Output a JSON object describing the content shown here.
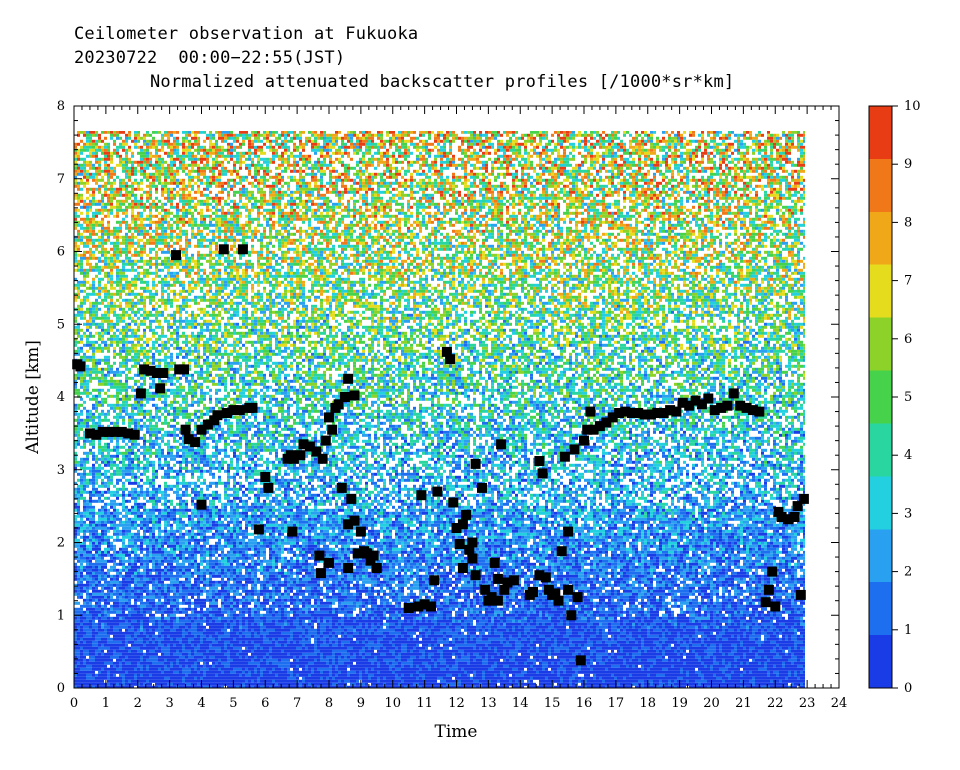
{
  "header": {
    "line1": "Ceilometer observation at Fukuoka",
    "line2": "20230722  00:00−22:55(JST)",
    "title": "Normalized attenuated backscatter profiles [/1000*sr*km]"
  },
  "chart_data": {
    "type": "heatmap",
    "title": "Normalized attenuated backscatter profiles [/1000*sr*km]",
    "xlabel": "Time",
    "ylabel": "Altitude [km]",
    "xlim": [
      0,
      24
    ],
    "ylim": [
      0,
      8
    ],
    "x_ticks": [
      "0",
      "1",
      "2",
      "3",
      "4",
      "5",
      "6",
      "7",
      "8",
      "9",
      "10",
      "11",
      "12",
      "13",
      "14",
      "15",
      "16",
      "17",
      "18",
      "19",
      "20",
      "21",
      "22",
      "23",
      "24"
    ],
    "y_ticks": [
      "0",
      "1",
      "2",
      "3",
      "4",
      "5",
      "6",
      "7",
      "8"
    ],
    "data_extent": {
      "time_end": 22.9,
      "altitude_top": 7.7
    },
    "colorbar": {
      "min": 0,
      "max": 10,
      "ticks": [
        "0",
        "1",
        "2",
        "3",
        "4",
        "5",
        "6",
        "7",
        "8",
        "9",
        "10"
      ],
      "colors": [
        "#1a3ce6",
        "#1e6ef0",
        "#2aa0f0",
        "#22d0e0",
        "#2ad6a0",
        "#46d24a",
        "#8cd228",
        "#e6dc1e",
        "#f0a818",
        "#f07818",
        "#e83c14"
      ]
    },
    "background_profile": {
      "altitude_km": [
        0,
        0.5,
        1.0,
        1.5,
        2.0,
        2.5,
        3.0,
        3.5,
        4.0,
        5.0,
        6.0,
        7.0,
        7.7
      ],
      "typical_value": [
        0.5,
        0.7,
        1.0,
        1.4,
        1.8,
        2.2,
        2.6,
        3.0,
        3.6,
        4.5,
        5.5,
        6.2,
        6.5
      ]
    },
    "cloud_base_series": {
      "name": "",
      "color": "#000000",
      "points": [
        [
          0.1,
          4.45
        ],
        [
          0.2,
          4.42
        ],
        [
          0.5,
          3.5
        ],
        [
          0.7,
          3.48
        ],
        [
          0.9,
          3.52
        ],
        [
          1.1,
          3.52
        ],
        [
          1.3,
          3.52
        ],
        [
          1.5,
          3.52
        ],
        [
          1.7,
          3.5
        ],
        [
          1.9,
          3.48
        ],
        [
          2.1,
          4.05
        ],
        [
          2.2,
          4.38
        ],
        [
          2.4,
          4.36
        ],
        [
          2.6,
          4.33
        ],
        [
          2.8,
          4.33
        ],
        [
          2.7,
          4.12
        ],
        [
          3.2,
          5.95
        ],
        [
          3.3,
          4.38
        ],
        [
          3.45,
          4.38
        ],
        [
          3.5,
          3.55
        ],
        [
          3.6,
          3.42
        ],
        [
          3.8,
          3.38
        ],
        [
          4.0,
          3.55
        ],
        [
          4.0,
          2.52
        ],
        [
          4.2,
          3.62
        ],
        [
          4.4,
          3.68
        ],
        [
          4.5,
          3.75
        ],
        [
          4.7,
          6.03
        ],
        [
          4.8,
          3.78
        ],
        [
          5.0,
          3.82
        ],
        [
          5.2,
          3.82
        ],
        [
          5.3,
          6.03
        ],
        [
          5.5,
          3.85
        ],
        [
          5.6,
          3.85
        ],
        [
          5.8,
          2.18
        ],
        [
          6.0,
          2.9
        ],
        [
          6.1,
          2.75
        ],
        [
          6.7,
          3.15
        ],
        [
          6.8,
          3.2
        ],
        [
          6.9,
          3.15
        ],
        [
          6.85,
          2.15
        ],
        [
          7.1,
          3.2
        ],
        [
          7.2,
          3.35
        ],
        [
          7.4,
          3.32
        ],
        [
          7.6,
          3.25
        ],
        [
          7.7,
          1.82
        ],
        [
          7.8,
          3.15
        ],
        [
          7.75,
          1.58
        ],
        [
          7.9,
          3.4
        ],
        [
          8.0,
          3.72
        ],
        [
          8.1,
          3.55
        ],
        [
          8.0,
          1.72
        ],
        [
          8.2,
          3.85
        ],
        [
          8.3,
          3.9
        ],
        [
          8.4,
          2.75
        ],
        [
          8.5,
          4.0
        ],
        [
          8.6,
          4.25
        ],
        [
          8.6,
          2.25
        ],
        [
          8.7,
          2.6
        ],
        [
          8.6,
          1.65
        ],
        [
          8.8,
          4.02
        ],
        [
          8.8,
          2.3
        ],
        [
          8.9,
          1.85
        ],
        [
          9.0,
          2.15
        ],
        [
          9.1,
          1.88
        ],
        [
          9.2,
          1.85
        ],
        [
          9.3,
          1.75
        ],
        [
          9.5,
          1.65
        ],
        [
          9.4,
          1.82
        ],
        [
          10.5,
          1.1
        ],
        [
          10.9,
          2.65
        ],
        [
          10.8,
          1.12
        ],
        [
          11.0,
          1.15
        ],
        [
          11.2,
          1.12
        ],
        [
          11.3,
          1.48
        ],
        [
          11.4,
          2.7
        ],
        [
          11.7,
          4.62
        ],
        [
          11.8,
          4.52
        ],
        [
          11.9,
          2.55
        ],
        [
          12.0,
          2.2
        ],
        [
          12.1,
          1.98
        ],
        [
          12.2,
          2.25
        ],
        [
          12.3,
          2.38
        ],
        [
          12.2,
          1.65
        ],
        [
          12.4,
          1.9
        ],
        [
          12.5,
          1.78
        ],
        [
          12.6,
          3.08
        ],
        [
          12.5,
          2.0
        ],
        [
          12.6,
          1.55
        ],
        [
          12.8,
          2.75
        ],
        [
          12.9,
          1.35
        ],
        [
          13.0,
          1.2
        ],
        [
          13.1,
          1.25
        ],
        [
          13.2,
          1.72
        ],
        [
          13.3,
          1.5
        ],
        [
          13.4,
          3.35
        ],
        [
          13.3,
          1.2
        ],
        [
          13.5,
          1.35
        ],
        [
          13.6,
          1.45
        ],
        [
          13.8,
          1.48
        ],
        [
          14.3,
          1.28
        ],
        [
          14.4,
          1.32
        ],
        [
          14.6,
          3.12
        ],
        [
          14.7,
          2.95
        ],
        [
          14.6,
          1.55
        ],
        [
          14.8,
          1.52
        ],
        [
          14.9,
          1.35
        ],
        [
          15.0,
          1.28
        ],
        [
          15.1,
          1.3
        ],
        [
          15.2,
          1.2
        ],
        [
          15.3,
          1.88
        ],
        [
          15.4,
          3.18
        ],
        [
          15.5,
          2.15
        ],
        [
          15.5,
          1.35
        ],
        [
          15.6,
          1.0
        ],
        [
          15.7,
          3.28
        ],
        [
          15.8,
          1.25
        ],
        [
          15.9,
          0.38
        ],
        [
          16.0,
          3.4
        ],
        [
          16.1,
          3.55
        ],
        [
          16.2,
          3.8
        ],
        [
          16.3,
          3.55
        ],
        [
          16.5,
          3.6
        ],
        [
          16.7,
          3.65
        ],
        [
          16.9,
          3.72
        ],
        [
          17.1,
          3.78
        ],
        [
          17.3,
          3.8
        ],
        [
          17.5,
          3.78
        ],
        [
          17.7,
          3.78
        ],
        [
          17.9,
          3.76
        ],
        [
          18.1,
          3.76
        ],
        [
          18.3,
          3.78
        ],
        [
          18.5,
          3.78
        ],
        [
          18.7,
          3.82
        ],
        [
          18.9,
          3.8
        ],
        [
          19.1,
          3.92
        ],
        [
          19.3,
          3.88
        ],
        [
          19.5,
          3.95
        ],
        [
          19.7,
          3.9
        ],
        [
          19.9,
          3.98
        ],
        [
          20.1,
          3.82
        ],
        [
          20.3,
          3.85
        ],
        [
          20.5,
          3.88
        ],
        [
          20.7,
          4.05
        ],
        [
          20.9,
          3.88
        ],
        [
          21.1,
          3.85
        ],
        [
          21.3,
          3.82
        ],
        [
          21.5,
          3.8
        ],
        [
          21.7,
          1.18
        ],
        [
          21.8,
          1.35
        ],
        [
          21.9,
          1.6
        ],
        [
          22.0,
          1.12
        ],
        [
          22.1,
          2.42
        ],
        [
          22.2,
          2.35
        ],
        [
          22.4,
          2.32
        ],
        [
          22.6,
          2.35
        ],
        [
          22.8,
          1.28
        ],
        [
          22.7,
          2.5
        ],
        [
          22.9,
          2.6
        ]
      ]
    }
  }
}
